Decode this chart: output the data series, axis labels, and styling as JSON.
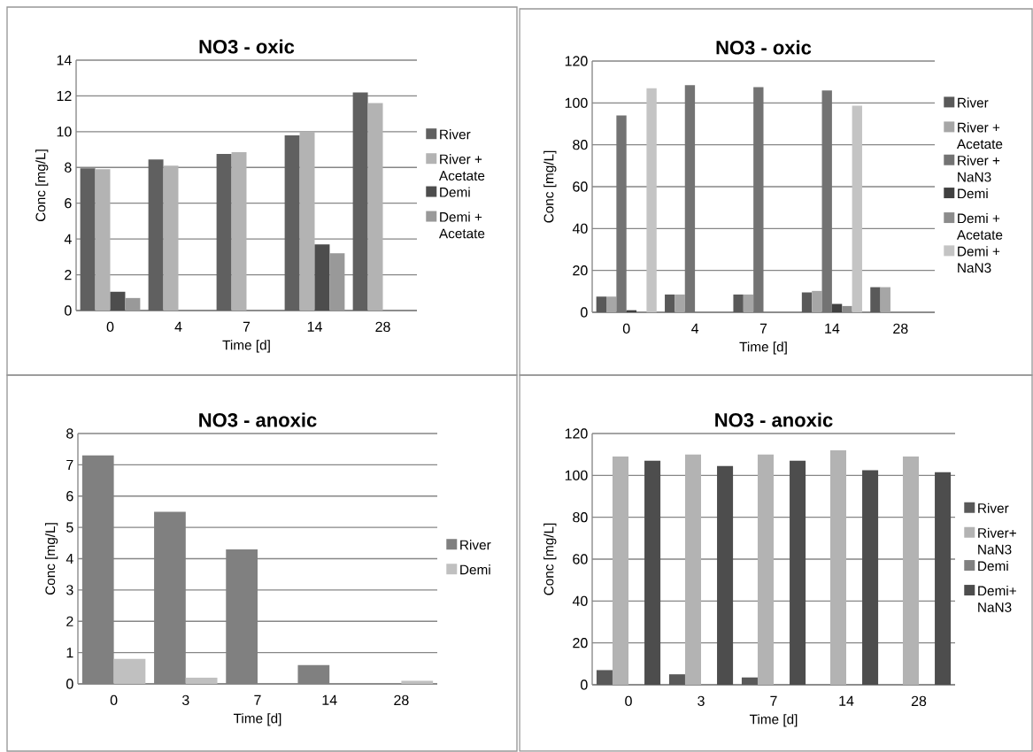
{
  "chart_data": [
    {
      "type": "bar",
      "title": "NO3 - oxic",
      "xlabel": "Time [d]",
      "ylabel": "Conc [mg/L]",
      "categories": [
        "0",
        "4",
        "7",
        "14",
        "28"
      ],
      "ylim": [
        0,
        14
      ],
      "yticks": [
        0,
        2,
        4,
        6,
        8,
        10,
        12,
        14
      ],
      "grid": "y",
      "legend": "right",
      "series": [
        {
          "name": "River",
          "color": "#606060",
          "values": [
            7.95,
            8.45,
            8.75,
            9.8,
            12.2
          ]
        },
        {
          "name": "River + Acetate",
          "color": "#b3b3b3",
          "values": [
            7.9,
            8.1,
            8.85,
            10.0,
            11.6
          ]
        },
        {
          "name": "Demi",
          "color": "#4d4d4d",
          "values": [
            1.05,
            null,
            null,
            3.7,
            null
          ]
        },
        {
          "name": "Demi + Acetate",
          "color": "#999999",
          "values": [
            0.7,
            null,
            null,
            3.2,
            null
          ]
        }
      ]
    },
    {
      "type": "bar",
      "title": "NO3 - oxic",
      "xlabel": "Time [d]",
      "ylabel": "Conc [mg/L]",
      "categories": [
        "0",
        "4",
        "7",
        "14",
        "28"
      ],
      "ylim": [
        0,
        120
      ],
      "yticks": [
        0,
        20,
        40,
        60,
        80,
        100,
        120
      ],
      "grid": "y",
      "legend": "right",
      "series": [
        {
          "name": "River",
          "color": "#595959",
          "values": [
            7.5,
            8.5,
            8.5,
            9.5,
            12
          ]
        },
        {
          "name": "River + Acetate",
          "color": "#a6a6a6",
          "values": [
            7.5,
            8.5,
            8.5,
            10.2,
            12
          ]
        },
        {
          "name": "River + NaN3",
          "color": "#737373",
          "values": [
            94,
            108.5,
            107.5,
            106,
            null
          ]
        },
        {
          "name": "Demi",
          "color": "#404040",
          "values": [
            1,
            null,
            null,
            4,
            null
          ]
        },
        {
          "name": "Demi + Acetate",
          "color": "#8c8c8c",
          "values": [
            null,
            null,
            null,
            3,
            null
          ]
        },
        {
          "name": "Demi + NaN3",
          "color": "#c4c4c4",
          "values": [
            107,
            null,
            null,
            98.7,
            null
          ]
        }
      ]
    },
    {
      "type": "bar",
      "title": "NO3 - anoxic",
      "xlabel": "Time [d]",
      "ylabel": "Conc [mg/L]",
      "categories": [
        "0",
        "3",
        "7",
        "14",
        "28"
      ],
      "ylim": [
        0,
        8
      ],
      "yticks": [
        0,
        1,
        2,
        3,
        4,
        5,
        6,
        7,
        8
      ],
      "grid": "y",
      "legend": "right",
      "series": [
        {
          "name": "River",
          "color": "#808080",
          "values": [
            7.3,
            5.5,
            4.3,
            0.6,
            0
          ]
        },
        {
          "name": "Demi",
          "color": "#c0c0c0",
          "values": [
            0.8,
            0.2,
            0,
            0,
            0.1
          ]
        }
      ]
    },
    {
      "type": "bar",
      "title": "NO3 - anoxic",
      "xlabel": "Time [d]",
      "ylabel": "Conc [mg/L]",
      "categories": [
        "0",
        "3",
        "7",
        "14",
        "28"
      ],
      "ylim": [
        0,
        120
      ],
      "yticks": [
        0,
        20,
        40,
        60,
        80,
        100,
        120
      ],
      "grid": "y",
      "legend": "right",
      "series": [
        {
          "name": "River",
          "color": "#595959",
          "values": [
            7,
            5,
            3.5,
            0,
            0
          ]
        },
        {
          "name": "River+ NaN3",
          "color": "#b3b3b3",
          "values": [
            109,
            110,
            110,
            112,
            109
          ]
        },
        {
          "name": "Demi",
          "color": "#808080",
          "values": [
            0,
            0,
            0,
            0,
            0
          ]
        },
        {
          "name": "Demi+ NaN3",
          "color": "#4d4d4d",
          "values": [
            107,
            104.5,
            107,
            102.5,
            101.5
          ]
        }
      ]
    }
  ]
}
